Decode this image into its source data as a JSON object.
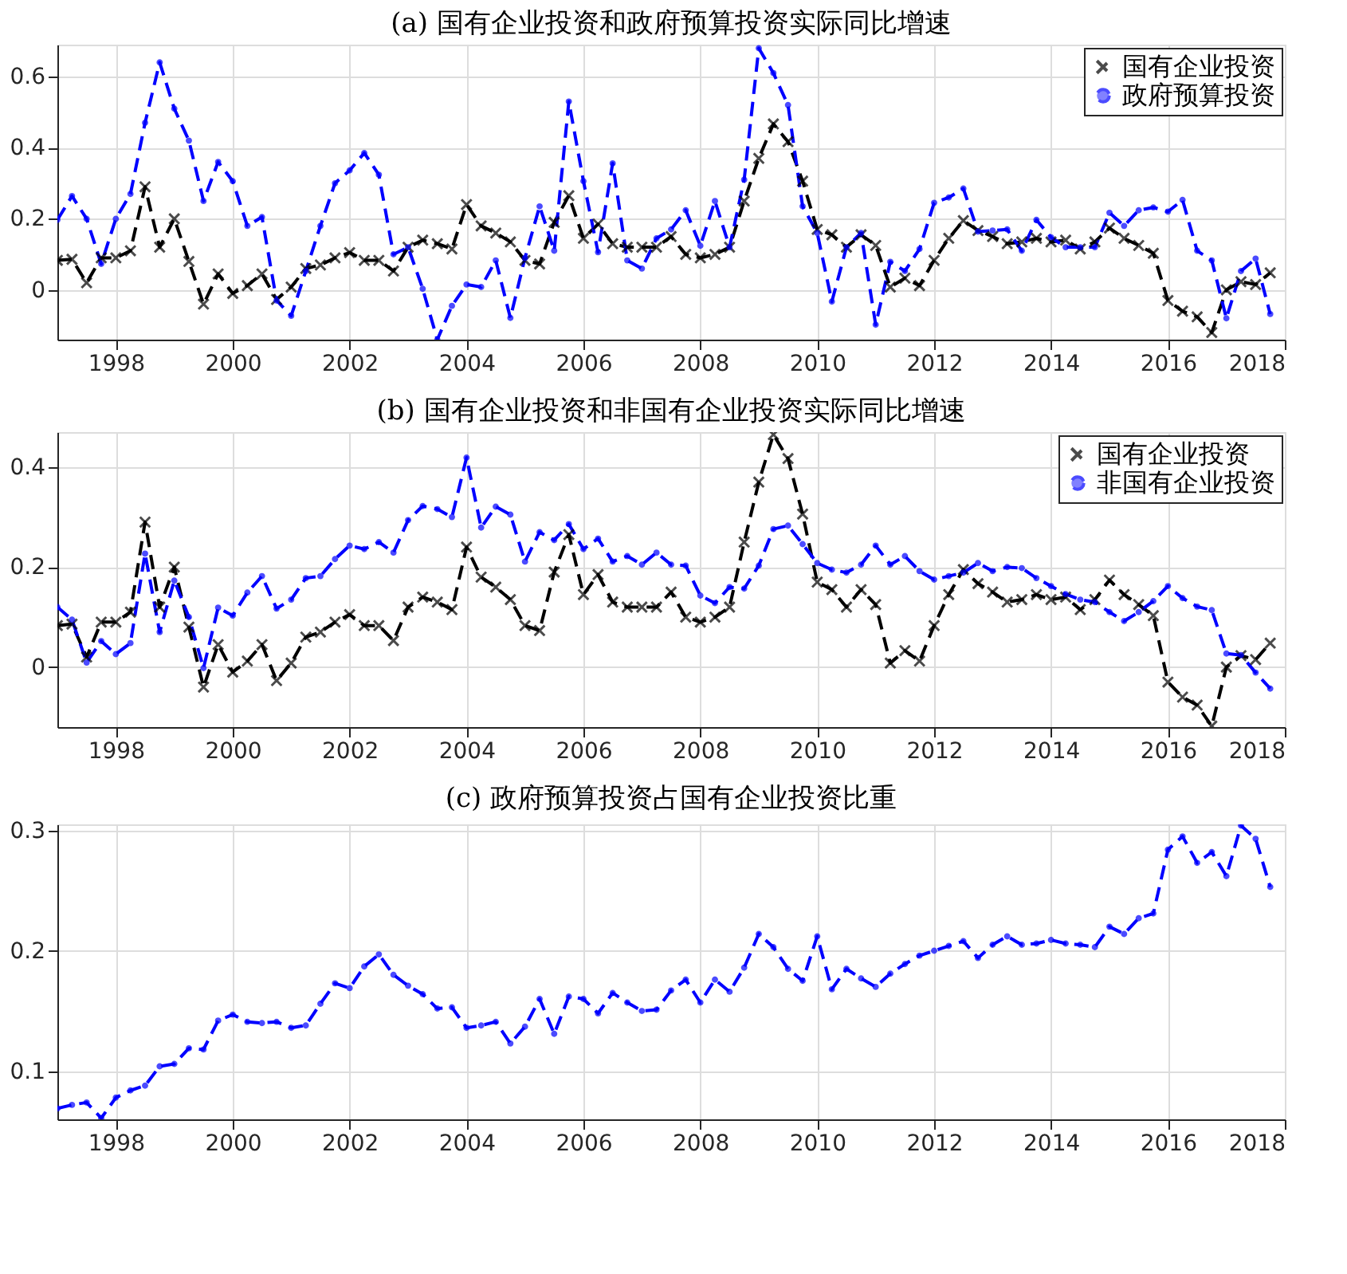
{
  "chart_data": [
    {
      "type": "line",
      "title": "(a) 国有企业投资和政府预算投资实际同比增速",
      "x": [
        1997.0,
        1997.25,
        1997.5,
        1997.75,
        1998.0,
        1998.25,
        1998.5,
        1998.75,
        1999.0,
        1999.25,
        1999.5,
        1999.75,
        2000.0,
        2000.25,
        2000.5,
        2000.75,
        2001.0,
        2001.25,
        2001.5,
        2001.75,
        2002.0,
        2002.25,
        2002.5,
        2002.75,
        2003.0,
        2003.25,
        2003.5,
        2003.75,
        2004.0,
        2004.25,
        2004.5,
        2004.75,
        2005.0,
        2005.25,
        2005.5,
        2005.75,
        2006.0,
        2006.25,
        2006.5,
        2006.75,
        2007.0,
        2007.25,
        2007.5,
        2007.75,
        2008.0,
        2008.25,
        2008.5,
        2008.75,
        2009.0,
        2009.25,
        2009.5,
        2009.75,
        2010.0,
        2010.25,
        2010.5,
        2010.75,
        2011.0,
        2011.25,
        2011.5,
        2011.75,
        2012.0,
        2012.25,
        2012.5,
        2012.75,
        2013.0,
        2013.25,
        2013.5,
        2013.75,
        2014.0,
        2014.25,
        2014.5,
        2014.75,
        2015.0,
        2015.25,
        2015.5,
        2015.75,
        2016.0,
        2016.25,
        2016.5,
        2016.75,
        2017.0,
        2017.25,
        2017.5,
        2017.75
      ],
      "series": [
        {
          "name": "国有企业投资",
          "color": "#000000",
          "marker": "cross",
          "line_style": "dashed",
          "values": [
            0.083,
            0.086,
            0.02,
            0.09,
            0.09,
            0.11,
            0.29,
            0.12,
            0.2,
            0.08,
            -0.04,
            0.045,
            -0.01,
            0.012,
            0.045,
            -0.027,
            0.008,
            0.06,
            0.07,
            0.09,
            0.105,
            0.083,
            0.083,
            0.053,
            0.12,
            0.14,
            0.13,
            0.115,
            0.24,
            0.18,
            0.16,
            0.135,
            0.083,
            0.073,
            0.19,
            0.265,
            0.145,
            0.185,
            0.13,
            0.12,
            0.12,
            0.12,
            0.15,
            0.1,
            0.09,
            0.1,
            0.12,
            0.25,
            0.37,
            0.467,
            0.417,
            0.306,
            0.17,
            0.155,
            0.12,
            0.155,
            0.125,
            0.008,
            0.033,
            0.012,
            0.083,
            0.145,
            0.195,
            0.167,
            0.15,
            0.13,
            0.135,
            0.145,
            0.135,
            0.14,
            0.115,
            0.135,
            0.174,
            0.145,
            0.125,
            0.103,
            -0.03,
            -0.06,
            -0.076,
            -0.12,
            0.0,
            0.023,
            0.015,
            0.048
          ]
        },
        {
          "name": "政府预算投资",
          "color": "#0000ff",
          "marker": "circle",
          "line_style": "dashed",
          "values": [
            0.197,
            0.264,
            0.2,
            0.073,
            0.2,
            0.27,
            0.47,
            0.64,
            0.51,
            0.42,
            0.25,
            0.36,
            0.306,
            0.18,
            0.205,
            -0.03,
            -0.073,
            0.053,
            0.18,
            0.3,
            0.336,
            0.385,
            0.324,
            0.1,
            0.12,
            0.003,
            -0.14,
            -0.045,
            0.015,
            0.008,
            0.083,
            -0.079,
            0.09,
            0.235,
            0.11,
            0.53,
            0.306,
            0.106,
            0.356,
            0.083,
            0.06,
            0.145,
            0.17,
            0.224,
            0.124,
            0.25,
            0.12,
            0.31,
            0.68,
            0.61,
            0.52,
            0.235,
            0.16,
            -0.033,
            0.12,
            0.16,
            -0.098,
            0.079,
            0.053,
            0.115,
            0.245,
            0.26,
            0.285,
            0.164,
            0.167,
            0.17,
            0.11,
            0.197,
            0.148,
            0.12,
            0.12,
            0.12,
            0.217,
            0.18,
            0.224,
            0.232,
            0.22,
            0.253,
            0.11,
            0.083,
            -0.08,
            0.053,
            0.088,
            -0.068
          ]
        }
      ],
      "xlim": [
        1997,
        2018
      ],
      "xticks": [
        1998,
        2000,
        2002,
        2004,
        2006,
        2008,
        2010,
        2012,
        2014,
        2016,
        2018
      ],
      "ylim": [
        -0.14,
        0.69
      ],
      "yticks": [
        0,
        0.2,
        0.4,
        0.6
      ],
      "grid": true,
      "legend": "top right"
    },
    {
      "type": "line",
      "title": "(b) 国有企业投资和非国有企业投资实际同比增速",
      "x": [
        1997.0,
        1997.25,
        1997.5,
        1997.75,
        1998.0,
        1998.25,
        1998.5,
        1998.75,
        1999.0,
        1999.25,
        1999.5,
        1999.75,
        2000.0,
        2000.25,
        2000.5,
        2000.75,
        2001.0,
        2001.25,
        2001.5,
        2001.75,
        2002.0,
        2002.25,
        2002.5,
        2002.75,
        2003.0,
        2003.25,
        2003.5,
        2003.75,
        2004.0,
        2004.25,
        2004.5,
        2004.75,
        2005.0,
        2005.25,
        2005.5,
        2005.75,
        2006.0,
        2006.25,
        2006.5,
        2006.75,
        2007.0,
        2007.25,
        2007.5,
        2007.75,
        2008.0,
        2008.25,
        2008.5,
        2008.75,
        2009.0,
        2009.25,
        2009.5,
        2009.75,
        2010.0,
        2010.25,
        2010.5,
        2010.75,
        2011.0,
        2011.25,
        2011.5,
        2011.75,
        2012.0,
        2012.25,
        2012.5,
        2012.75,
        2013.0,
        2013.25,
        2013.5,
        2013.75,
        2014.0,
        2014.25,
        2014.5,
        2014.75,
        2015.0,
        2015.25,
        2015.5,
        2015.75,
        2016.0,
        2016.25,
        2016.5,
        2016.75,
        2017.0,
        2017.25,
        2017.5,
        2017.75
      ],
      "series": [
        {
          "name": "国有企业投资",
          "color": "#000000",
          "marker": "cross",
          "line_style": "dashed",
          "values": [
            0.083,
            0.086,
            0.02,
            0.09,
            0.09,
            0.11,
            0.29,
            0.12,
            0.2,
            0.08,
            -0.04,
            0.045,
            -0.01,
            0.012,
            0.045,
            -0.027,
            0.008,
            0.06,
            0.07,
            0.09,
            0.105,
            0.083,
            0.083,
            0.053,
            0.12,
            0.14,
            0.13,
            0.115,
            0.24,
            0.18,
            0.16,
            0.135,
            0.083,
            0.073,
            0.19,
            0.265,
            0.145,
            0.185,
            0.13,
            0.12,
            0.12,
            0.12,
            0.15,
            0.1,
            0.09,
            0.1,
            0.12,
            0.25,
            0.37,
            0.465,
            0.417,
            0.306,
            0.17,
            0.155,
            0.12,
            0.155,
            0.125,
            0.008,
            0.033,
            0.012,
            0.083,
            0.145,
            0.195,
            0.167,
            0.15,
            0.13,
            0.135,
            0.145,
            0.135,
            0.14,
            0.115,
            0.135,
            0.174,
            0.145,
            0.125,
            0.103,
            -0.03,
            -0.06,
            -0.076,
            -0.118,
            0.0,
            0.023,
            0.015,
            0.048
          ]
        },
        {
          "name": "非国有企业投资",
          "color": "#0000ff",
          "marker": "circle",
          "line_style": "dashed",
          "values": [
            0.12,
            0.095,
            0.009,
            0.052,
            0.026,
            0.048,
            0.227,
            0.07,
            0.173,
            0.1,
            -0.002,
            0.119,
            0.103,
            0.149,
            0.182,
            0.117,
            0.135,
            0.178,
            0.182,
            0.216,
            0.243,
            0.236,
            0.25,
            0.229,
            0.294,
            0.322,
            0.316,
            0.3,
            0.419,
            0.279,
            0.321,
            0.305,
            0.211,
            0.27,
            0.254,
            0.286,
            0.236,
            0.257,
            0.211,
            0.222,
            0.205,
            0.229,
            0.205,
            0.203,
            0.143,
            0.128,
            0.16,
            0.157,
            0.203,
            0.276,
            0.283,
            0.246,
            0.208,
            0.195,
            0.189,
            0.205,
            0.243,
            0.205,
            0.222,
            0.192,
            0.175,
            0.182,
            0.189,
            0.208,
            0.192,
            0.2,
            0.198,
            0.178,
            0.162,
            0.146,
            0.135,
            0.13,
            0.11,
            0.092,
            0.11,
            0.132,
            0.162,
            0.138,
            0.121,
            0.114,
            0.027,
            0.024,
            -0.011,
            -0.043
          ]
        }
      ],
      "xlim": [
        1997,
        2018
      ],
      "xticks": [
        1998,
        2000,
        2002,
        2004,
        2006,
        2008,
        2010,
        2012,
        2014,
        2016,
        2018
      ],
      "ylim": [
        -0.12,
        0.47
      ],
      "yticks": [
        0,
        0.2,
        0.4
      ],
      "grid": true,
      "legend": "top right"
    },
    {
      "type": "line",
      "title": "(c) 政府预算投资占国有企业投资比重",
      "x": [
        1997.0,
        1997.25,
        1997.5,
        1997.75,
        1998.0,
        1998.25,
        1998.5,
        1998.75,
        1999.0,
        1999.25,
        1999.5,
        1999.75,
        2000.0,
        2000.25,
        2000.5,
        2000.75,
        2001.0,
        2001.25,
        2001.5,
        2001.75,
        2002.0,
        2002.25,
        2002.5,
        2002.75,
        2003.0,
        2003.25,
        2003.5,
        2003.75,
        2004.0,
        2004.25,
        2004.5,
        2004.75,
        2005.0,
        2005.25,
        2005.5,
        2005.75,
        2006.0,
        2006.25,
        2006.5,
        2006.75,
        2007.0,
        2007.25,
        2007.5,
        2007.75,
        2008.0,
        2008.25,
        2008.5,
        2008.75,
        2009.0,
        2009.25,
        2009.5,
        2009.75,
        2010.0,
        2010.25,
        2010.5,
        2010.75,
        2011.0,
        2011.25,
        2011.5,
        2011.75,
        2012.0,
        2012.25,
        2012.5,
        2012.75,
        2013.0,
        2013.25,
        2013.5,
        2013.75,
        2014.0,
        2014.25,
        2014.5,
        2014.75,
        2015.0,
        2015.25,
        2015.5,
        2015.75,
        2016.0,
        2016.25,
        2016.5,
        2016.75,
        2017.0,
        2017.25,
        2017.5,
        2017.75
      ],
      "series": [
        {
          "color": "#0000ff",
          "marker": "circle",
          "line_style": "dashed",
          "values": [
            0.069,
            0.072,
            0.074,
            0.061,
            0.078,
            0.084,
            0.088,
            0.104,
            0.106,
            0.119,
            0.118,
            0.142,
            0.147,
            0.141,
            0.14,
            0.141,
            0.136,
            0.138,
            0.156,
            0.173,
            0.169,
            0.187,
            0.197,
            0.18,
            0.171,
            0.164,
            0.152,
            0.153,
            0.136,
            0.138,
            0.141,
            0.123,
            0.137,
            0.16,
            0.131,
            0.162,
            0.16,
            0.148,
            0.165,
            0.157,
            0.15,
            0.151,
            0.167,
            0.176,
            0.157,
            0.176,
            0.166,
            0.186,
            0.214,
            0.203,
            0.185,
            0.175,
            0.212,
            0.168,
            0.185,
            0.177,
            0.17,
            0.181,
            0.189,
            0.196,
            0.2,
            0.204,
            0.208,
            0.194,
            0.205,
            0.212,
            0.205,
            0.206,
            0.209,
            0.206,
            0.205,
            0.203,
            0.22,
            0.214,
            0.227,
            0.231,
            0.284,
            0.295,
            0.273,
            0.282,
            0.262,
            0.304,
            0.293,
            0.253
          ]
        }
      ],
      "xlim": [
        1997,
        2018
      ],
      "xticks": [
        1998,
        2000,
        2002,
        2004,
        2006,
        2008,
        2010,
        2012,
        2014,
        2016,
        2018
      ],
      "ylim": [
        0.06,
        0.305
      ],
      "yticks": [
        0.1,
        0.2,
        0.3
      ],
      "grid": true
    }
  ]
}
